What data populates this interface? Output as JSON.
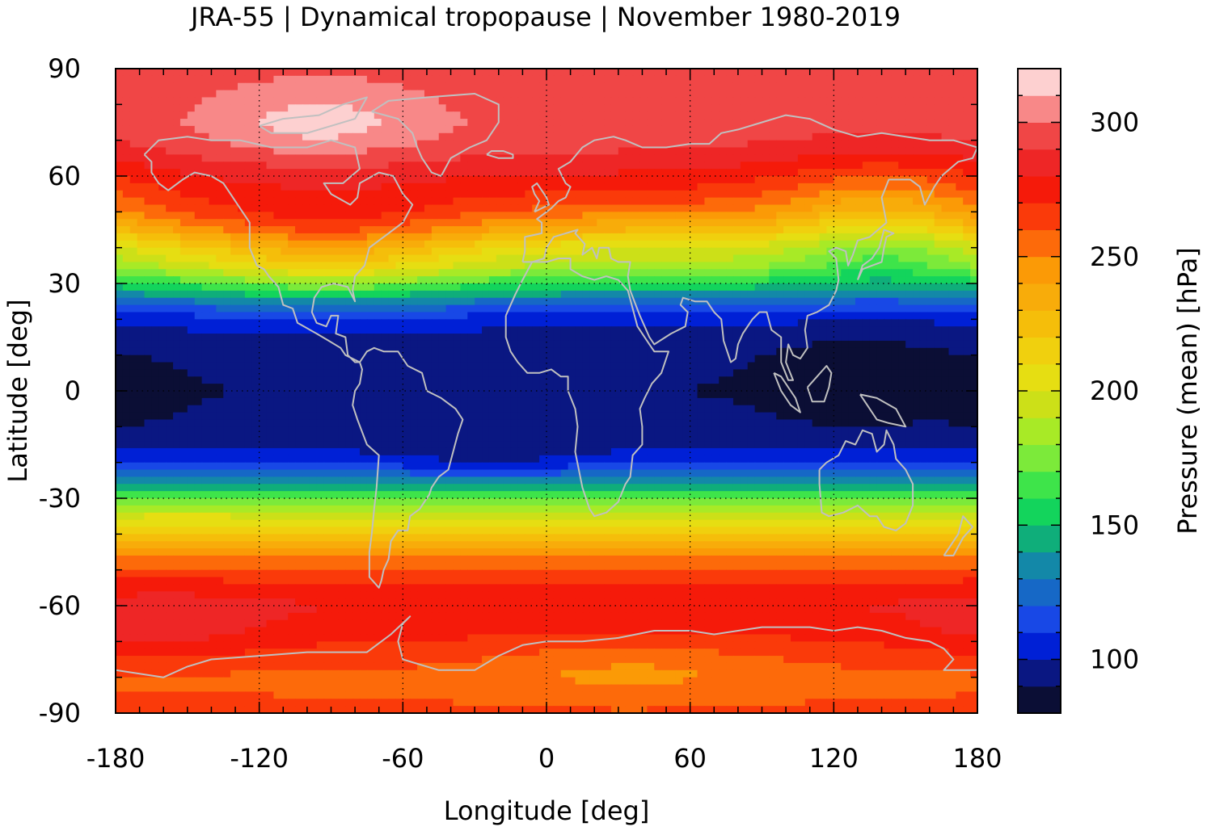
{
  "chart_data": {
    "type": "heatmap",
    "title": "JRA-55 | Dynamical tropopause | November 1980-2019",
    "xlabel": "Longitude [deg]",
    "ylabel": "Latitude [deg]",
    "colorbar_label": "Pressure (mean) [hPa]",
    "xlim": [
      -180,
      180
    ],
    "ylim": [
      -90,
      90
    ],
    "x_ticks": [
      -180,
      -120,
      -60,
      0,
      60,
      120,
      180
    ],
    "y_ticks": [
      90,
      60,
      30,
      0,
      -30,
      -60,
      -90
    ],
    "x_tick_labels": [
      "-180",
      "-120",
      "-60",
      "0",
      "60",
      "120",
      "180"
    ],
    "y_tick_labels": [
      "90",
      "60",
      "30",
      "0",
      "-30",
      "-60",
      "-90"
    ],
    "colorbar_range": [
      80,
      320
    ],
    "colorbar_ticks": [
      100,
      150,
      200,
      250,
      300
    ],
    "colorbar_tick_labels": [
      "100",
      "150",
      "200",
      "250",
      "300"
    ],
    "grid": true,
    "coastline_color": "#c0c0c0",
    "levels": [
      {
        "lo": 80,
        "hi": 90,
        "color": "#0b0e35"
      },
      {
        "lo": 90,
        "hi": 100,
        "color": "#0a1782"
      },
      {
        "lo": 100,
        "hi": 110,
        "color": "#0020d6"
      },
      {
        "lo": 110,
        "hi": 120,
        "color": "#1848e6"
      },
      {
        "lo": 120,
        "hi": 130,
        "color": "#1668c6"
      },
      {
        "lo": 130,
        "hi": 140,
        "color": "#1388a8"
      },
      {
        "lo": 140,
        "hi": 150,
        "color": "#0fae7a"
      },
      {
        "lo": 150,
        "hi": 160,
        "color": "#13d45c"
      },
      {
        "lo": 160,
        "hi": 170,
        "color": "#3ee44a"
      },
      {
        "lo": 170,
        "hi": 180,
        "color": "#7cea3a"
      },
      {
        "lo": 180,
        "hi": 190,
        "color": "#a8ea26"
      },
      {
        "lo": 190,
        "hi": 200,
        "color": "#cce018"
      },
      {
        "lo": 200,
        "hi": 210,
        "color": "#e6de12"
      },
      {
        "lo": 210,
        "hi": 220,
        "color": "#f0d00e"
      },
      {
        "lo": 220,
        "hi": 230,
        "color": "#f5be0a"
      },
      {
        "lo": 230,
        "hi": 240,
        "color": "#f8ac0a"
      },
      {
        "lo": 240,
        "hi": 250,
        "color": "#fb9a06"
      },
      {
        "lo": 250,
        "hi": 260,
        "color": "#fd6a0a"
      },
      {
        "lo": 260,
        "hi": 270,
        "color": "#fa3a0a"
      },
      {
        "lo": 270,
        "hi": 280,
        "color": "#f51a0a"
      },
      {
        "lo": 280,
        "hi": 290,
        "color": "#ee2626"
      },
      {
        "lo": 290,
        "hi": 300,
        "color": "#f04646"
      },
      {
        "lo": 300,
        "hi": 310,
        "color": "#f88888"
      },
      {
        "lo": 310,
        "hi": 320,
        "color": "#fdd0d0"
      }
    ],
    "zonal_profile": {
      "lat": [
        -90,
        -80,
        -72,
        -66,
        -60,
        -55,
        -50,
        -45,
        -40,
        -35,
        -30,
        -27,
        -24,
        -20,
        -15,
        -10,
        -5,
        0,
        5,
        10,
        15,
        20,
        24,
        27,
        30,
        35,
        40,
        45,
        50,
        55,
        60,
        65,
        70,
        75,
        80,
        90
      ],
      "pressure": [
        262,
        258,
        268,
        275,
        280,
        274,
        262,
        245,
        220,
        200,
        170,
        150,
        128,
        108,
        96,
        92,
        91,
        90,
        91,
        92,
        96,
        104,
        120,
        140,
        160,
        190,
        210,
        240,
        262,
        272,
        280,
        288,
        294,
        296,
        295,
        295
      ]
    }
  }
}
